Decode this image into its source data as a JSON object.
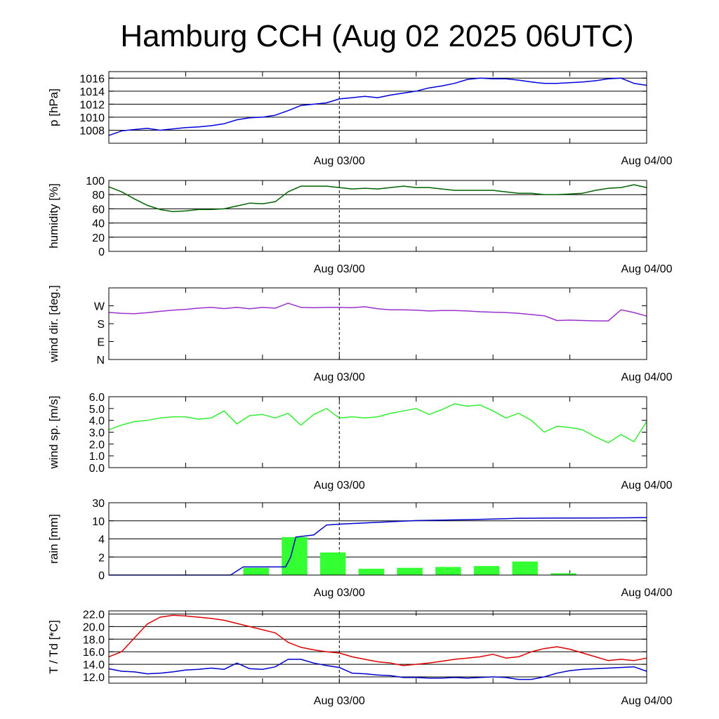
{
  "title": "Hamburg CCH (Aug 02 2025 06UTC)",
  "x_axis": {
    "start_hour": 0,
    "end_hour": 42,
    "labels": [
      {
        "hour": 18,
        "text": "Aug 03/00"
      },
      {
        "hour": 42,
        "text": "Aug 04/00"
      }
    ],
    "marker_hour": 18
  },
  "colors": {
    "pressure": "#0000dd",
    "humidity": "#006400",
    "wind_dir": "#9932cc",
    "wind_speed": "#33ee33",
    "rain_bar": "#33ff33",
    "rain_cum": "#0000cc",
    "temperature": "#dd0000",
    "dewpoint": "#0000cc"
  },
  "chart_data": [
    {
      "type": "line",
      "ylabel": "p [hPa]",
      "ylim": [
        1006,
        1017
      ],
      "gridlines": [
        1008,
        1010,
        1012,
        1014,
        1016
      ],
      "ticks": [
        {
          "v": 1008,
          "t": "1008"
        },
        {
          "v": 1010,
          "t": "1010"
        },
        {
          "v": 1012,
          "t": "1012"
        },
        {
          "v": 1014,
          "t": "1014"
        },
        {
          "v": 1016,
          "t": "1016"
        }
      ],
      "series": [
        {
          "color_key": "pressure",
          "x": [
            0,
            1,
            2,
            3,
            4,
            5,
            6,
            7,
            8,
            9,
            10,
            11,
            12,
            13,
            14,
            15,
            16,
            17,
            18,
            19,
            20,
            21,
            22,
            23,
            24,
            25,
            26,
            27,
            28,
            29,
            30,
            31,
            32,
            33,
            34,
            35,
            36,
            37,
            38,
            39,
            40,
            41,
            42
          ],
          "y": [
            1007.2,
            1007.9,
            1008.1,
            1008.3,
            1008.0,
            1008.2,
            1008.4,
            1008.5,
            1008.7,
            1009.0,
            1009.6,
            1009.9,
            1010.0,
            1010.3,
            1011.0,
            1011.8,
            1012.0,
            1012.2,
            1012.8,
            1013.0,
            1013.2,
            1013.0,
            1013.4,
            1013.7,
            1014.0,
            1014.5,
            1014.8,
            1015.2,
            1015.8,
            1016.0,
            1015.9,
            1015.9,
            1015.7,
            1015.4,
            1015.2,
            1015.2,
            1015.3,
            1015.4,
            1015.6,
            1015.9,
            1016.0,
            1015.2,
            1014.9
          ]
        }
      ]
    },
    {
      "type": "line",
      "ylabel": "humidity [%]",
      "ylim": [
        0,
        100
      ],
      "gridlines": [
        20,
        40,
        60,
        80
      ],
      "ticks": [
        {
          "v": 0,
          "t": "0"
        },
        {
          "v": 20,
          "t": "20"
        },
        {
          "v": 40,
          "t": "40"
        },
        {
          "v": 60,
          "t": "60"
        },
        {
          "v": 80,
          "t": "80"
        },
        {
          "v": 100,
          "t": "100"
        }
      ],
      "series": [
        {
          "color_key": "humidity",
          "x": [
            0,
            1,
            2,
            3,
            4,
            5,
            6,
            7,
            8,
            9,
            10,
            11,
            12,
            13,
            14,
            15,
            16,
            17,
            18,
            19,
            20,
            21,
            22,
            23,
            24,
            25,
            26,
            27,
            28,
            29,
            30,
            31,
            32,
            33,
            34,
            35,
            36,
            37,
            38,
            39,
            40,
            41,
            42
          ],
          "y": [
            91,
            84,
            74,
            65,
            59,
            56,
            57,
            59,
            59,
            60,
            64,
            68,
            67,
            70,
            84,
            92,
            92,
            92,
            90,
            88,
            89,
            88,
            90,
            92,
            90,
            90,
            88,
            86,
            86,
            86,
            86,
            84,
            82,
            82,
            80,
            80,
            81,
            82,
            86,
            89,
            90,
            94,
            90
          ]
        }
      ]
    },
    {
      "type": "line",
      "ylabel": "wind dir. [deg.]",
      "ylim": [
        0,
        360
      ],
      "gridlines": [],
      "ticks": [
        {
          "v": 0,
          "t": "N"
        },
        {
          "v": 90,
          "t": "E"
        },
        {
          "v": 180,
          "t": "S"
        },
        {
          "v": 270,
          "t": "W"
        }
      ],
      "series": [
        {
          "color_key": "wind_dir",
          "x": [
            0,
            1,
            2,
            3,
            4,
            5,
            6,
            7,
            8,
            9,
            10,
            11,
            12,
            13,
            14,
            15,
            16,
            17,
            18,
            19,
            20,
            21,
            22,
            23,
            24,
            25,
            26,
            27,
            28,
            29,
            30,
            31,
            32,
            33,
            34,
            35,
            36,
            37,
            38,
            39,
            40,
            41,
            42
          ],
          "y": [
            237,
            232,
            230,
            235,
            242,
            248,
            252,
            258,
            262,
            256,
            262,
            255,
            262,
            258,
            283,
            262,
            260,
            262,
            262,
            260,
            265,
            255,
            250,
            250,
            248,
            244,
            246,
            246,
            244,
            240,
            238,
            236,
            232,
            226,
            220,
            196,
            198,
            196,
            194,
            194,
            250,
            236,
            218
          ]
        }
      ]
    },
    {
      "type": "line",
      "ylabel": "wind sp. [m/s]",
      "ylim": [
        0,
        6
      ],
      "gridlines": [],
      "ticks": [
        {
          "v": 0,
          "t": "0.0"
        },
        {
          "v": 1,
          "t": "1.0"
        },
        {
          "v": 2,
          "t": "2.0"
        },
        {
          "v": 3,
          "t": "3.0"
        },
        {
          "v": 4,
          "t": "4.0"
        },
        {
          "v": 5,
          "t": "5.0"
        },
        {
          "v": 6,
          "t": "6.0"
        }
      ],
      "series": [
        {
          "color_key": "wind_speed",
          "x": [
            0,
            1,
            2,
            3,
            4,
            5,
            6,
            7,
            8,
            9,
            10,
            11,
            12,
            13,
            14,
            15,
            16,
            17,
            18,
            19,
            20,
            21,
            22,
            23,
            24,
            25,
            26,
            27,
            28,
            29,
            30,
            31,
            32,
            33,
            34,
            35,
            36,
            37,
            38,
            39,
            40,
            41,
            42
          ],
          "y": [
            3.2,
            3.6,
            3.9,
            4.0,
            4.2,
            4.3,
            4.3,
            4.1,
            4.2,
            4.8,
            3.7,
            4.4,
            4.5,
            4.2,
            4.6,
            3.6,
            4.5,
            5.0,
            4.2,
            4.3,
            4.2,
            4.3,
            4.6,
            4.8,
            5.0,
            4.5,
            4.9,
            5.4,
            5.2,
            5.3,
            4.8,
            4.2,
            4.6,
            4.0,
            3.0,
            3.5,
            3.4,
            3.2,
            2.6,
            2.1,
            2.8,
            2.2,
            3.9
          ]
        }
      ]
    },
    {
      "type": "bar",
      "ylabel": "rain [mm]",
      "yscale": "nonlinear",
      "scale_anchors": [
        0,
        2,
        4,
        10,
        30
      ],
      "gridlines": [
        2,
        4,
        10
      ],
      "ticks": [
        {
          "v": 0,
          "t": "0"
        },
        {
          "v": 2,
          "t": "2"
        },
        {
          "v": 4,
          "t": "4"
        },
        {
          "v": 10,
          "t": "10"
        },
        {
          "v": 30,
          "t": "30"
        }
      ],
      "bars": [
        {
          "x0": 10.5,
          "x1": 12.5,
          "value": 0.8
        },
        {
          "x0": 13.5,
          "x1": 15.5,
          "value": 4.6
        },
        {
          "x0": 16.5,
          "x1": 18.5,
          "value": 2.5
        },
        {
          "x0": 19.5,
          "x1": 21.5,
          "value": 0.7
        },
        {
          "x0": 22.5,
          "x1": 24.5,
          "value": 0.8
        },
        {
          "x0": 25.5,
          "x1": 27.5,
          "value": 0.9
        },
        {
          "x0": 28.5,
          "x1": 30.5,
          "value": 1.0
        },
        {
          "x0": 31.5,
          "x1": 33.5,
          "value": 1.5
        },
        {
          "x0": 34.5,
          "x1": 36.5,
          "value": 0.2
        }
      ],
      "cumulative": {
        "color_key": "rain_cum",
        "x": [
          0,
          9.5,
          10.5,
          13.8,
          14.2,
          14.6,
          16.0,
          17.0,
          18.0,
          20.0,
          24.0,
          28.0,
          31.0,
          32.0,
          34.0,
          38.0,
          40.0,
          42.0
        ],
        "y": [
          0,
          0,
          0.9,
          0.9,
          2.0,
          4.6,
          5.3,
          8.6,
          8.9,
          9.3,
          10.3,
          11.3,
          12.3,
          12.8,
          13.0,
          13.1,
          13.3,
          13.6
        ]
      }
    },
    {
      "type": "line",
      "ylabel": "T / Td [*C]",
      "ylim": [
        11,
        22.5
      ],
      "gridlines": [
        12,
        14,
        16,
        18,
        20,
        22
      ],
      "ticks": [
        {
          "v": 12,
          "t": "12.0"
        },
        {
          "v": 14,
          "t": "14.0"
        },
        {
          "v": 16,
          "t": "16.0"
        },
        {
          "v": 18,
          "t": "18.0"
        },
        {
          "v": 20,
          "t": "20.0"
        },
        {
          "v": 22,
          "t": "22.0"
        }
      ],
      "series": [
        {
          "color_key": "temperature",
          "x": [
            0,
            1,
            2,
            3,
            4,
            5,
            6,
            7,
            8,
            9,
            10,
            11,
            12,
            13,
            14,
            15,
            16,
            17,
            18,
            19,
            20,
            21,
            22,
            23,
            24,
            25,
            26,
            27,
            28,
            29,
            30,
            31,
            32,
            33,
            34,
            35,
            36,
            37,
            38,
            39,
            40,
            41,
            42
          ],
          "y": [
            15.2,
            16.0,
            18.2,
            20.4,
            21.5,
            21.8,
            21.7,
            21.5,
            21.3,
            21.0,
            20.5,
            20.0,
            19.5,
            19.0,
            17.5,
            16.7,
            16.3,
            16.0,
            15.8,
            15.2,
            14.8,
            14.4,
            14.2,
            13.8,
            14.0,
            14.2,
            14.5,
            14.8,
            15.0,
            15.2,
            15.6,
            15.0,
            15.2,
            16.0,
            16.5,
            16.8,
            16.4,
            15.8,
            15.2,
            14.6,
            14.8,
            14.6,
            15.0
          ]
        },
        {
          "color_key": "dewpoint",
          "x": [
            0,
            1,
            2,
            3,
            4,
            5,
            6,
            7,
            8,
            9,
            10,
            11,
            12,
            13,
            14,
            15,
            16,
            17,
            18,
            19,
            20,
            21,
            22,
            23,
            24,
            25,
            26,
            27,
            28,
            29,
            30,
            31,
            32,
            33,
            34,
            35,
            36,
            37,
            38,
            39,
            40,
            41,
            42
          ],
          "y": [
            13.3,
            12.9,
            12.8,
            12.5,
            12.6,
            12.8,
            13.1,
            13.2,
            13.4,
            13.2,
            14.2,
            13.3,
            13.2,
            13.6,
            14.8,
            14.8,
            14.2,
            13.8,
            13.5,
            12.6,
            12.5,
            12.3,
            12.2,
            11.9,
            11.9,
            11.8,
            11.8,
            11.9,
            11.8,
            11.9,
            12.0,
            11.9,
            11.6,
            11.6,
            12.0,
            12.6,
            13.0,
            13.2,
            13.3,
            13.4,
            13.5,
            13.6,
            12.9
          ]
        }
      ]
    }
  ]
}
